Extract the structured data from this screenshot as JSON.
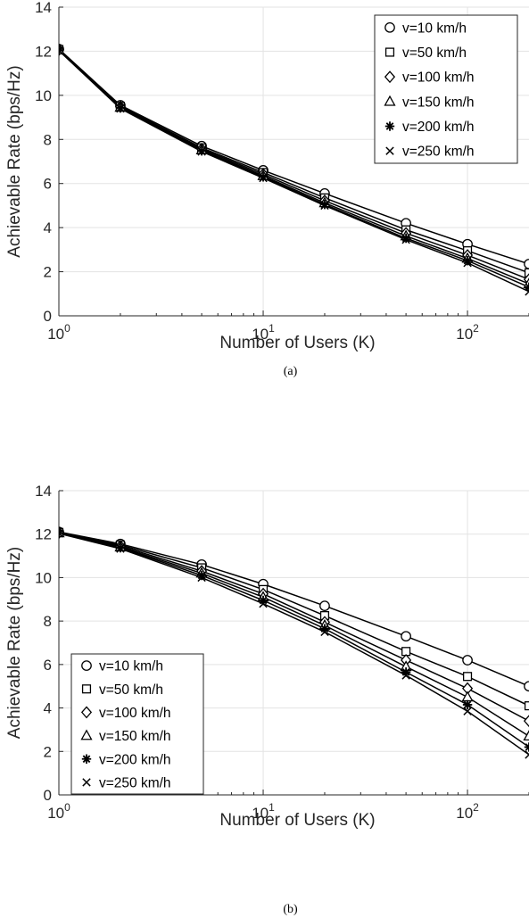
{
  "chart_data": [
    {
      "type": "line",
      "caption": "(a)",
      "xlabel": "Number of Users (K)",
      "ylabel": "Achievable Rate (bps/Hz)",
      "xscale": "log",
      "xlim": [
        1,
        200
      ],
      "ylim": [
        0,
        14
      ],
      "yticks": [
        0,
        2,
        4,
        6,
        8,
        10,
        12,
        14
      ],
      "xticks": [
        {
          "value": 1,
          "base": "10",
          "exp": "0"
        },
        {
          "value": 10,
          "base": "10",
          "exp": "1"
        },
        {
          "value": 100,
          "base": "10",
          "exp": "2"
        }
      ],
      "grid": true,
      "legend_position": "top-right",
      "x": [
        1,
        2,
        5,
        10,
        20,
        50,
        100,
        200
      ],
      "series": [
        {
          "name": "v=10 km/h",
          "marker": "circle",
          "values": [
            12.1,
            9.55,
            7.7,
            6.6,
            5.55,
            4.2,
            3.25,
            2.35
          ]
        },
        {
          "name": "v=50 km/h",
          "marker": "square",
          "values": [
            12.08,
            9.5,
            7.62,
            6.5,
            5.35,
            3.9,
            2.95,
            1.95
          ]
        },
        {
          "name": "v=100 km/h",
          "marker": "diamond",
          "values": [
            12.06,
            9.48,
            7.57,
            6.42,
            5.22,
            3.75,
            2.75,
            1.65
          ]
        },
        {
          "name": "v=150 km/h",
          "marker": "triangle",
          "values": [
            12.05,
            9.45,
            7.52,
            6.35,
            5.12,
            3.62,
            2.6,
            1.45
          ]
        },
        {
          "name": "v=200 km/h",
          "marker": "asterisk",
          "values": [
            12.04,
            9.43,
            7.48,
            6.3,
            5.05,
            3.52,
            2.5,
            1.3
          ]
        },
        {
          "name": "v=250 km/h",
          "marker": "x",
          "values": [
            12.03,
            9.4,
            7.45,
            6.25,
            5.0,
            3.45,
            2.4,
            1.1
          ]
        }
      ]
    },
    {
      "type": "line",
      "caption": "(b)",
      "xlabel": "Number of Users (K)",
      "ylabel": "Achievable Rate (bps/Hz)",
      "xscale": "log",
      "xlim": [
        1,
        200
      ],
      "ylim": [
        0,
        14
      ],
      "yticks": [
        0,
        2,
        4,
        6,
        8,
        10,
        12,
        14
      ],
      "xticks": [
        {
          "value": 1,
          "base": "10",
          "exp": "0"
        },
        {
          "value": 10,
          "base": "10",
          "exp": "1"
        },
        {
          "value": 100,
          "base": "10",
          "exp": "2"
        }
      ],
      "grid": true,
      "legend_position": "bottom-left",
      "x": [
        1,
        2,
        5,
        10,
        20,
        50,
        100,
        200
      ],
      "series": [
        {
          "name": "v=10 km/h",
          "marker": "circle",
          "values": [
            12.1,
            11.55,
            10.6,
            9.7,
            8.7,
            7.3,
            6.2,
            5.0
          ]
        },
        {
          "name": "v=50 km/h",
          "marker": "square",
          "values": [
            12.08,
            11.5,
            10.45,
            9.45,
            8.25,
            6.6,
            5.45,
            4.1
          ]
        },
        {
          "name": "v=100 km/h",
          "marker": "diamond",
          "values": [
            12.06,
            11.45,
            10.3,
            9.25,
            7.95,
            6.2,
            4.9,
            3.4
          ]
        },
        {
          "name": "v=150 km/h",
          "marker": "triangle",
          "values": [
            12.05,
            11.4,
            10.2,
            9.1,
            7.8,
            5.9,
            4.5,
            2.7
          ]
        },
        {
          "name": "v=200 km/h",
          "marker": "asterisk",
          "values": [
            12.04,
            11.37,
            10.1,
            8.95,
            7.65,
            5.65,
            4.15,
            2.2
          ]
        },
        {
          "name": "v=250 km/h",
          "marker": "x",
          "values": [
            12.03,
            11.33,
            10.0,
            8.8,
            7.5,
            5.5,
            3.85,
            1.85
          ]
        }
      ]
    }
  ]
}
